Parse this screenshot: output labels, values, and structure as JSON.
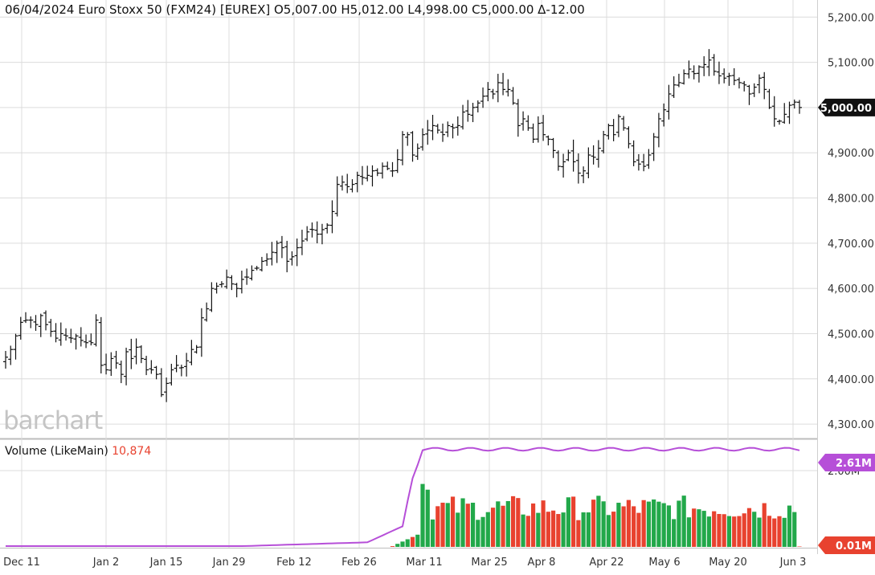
{
  "header": {
    "text": "06/04/2024 Euro Stoxx 50 (FXM24) [EUREX] O5,007.00 H5,012.00 L4,998.00 C5,000.00 Δ-12.00"
  },
  "logo": "barchart",
  "volume_header": {
    "label": "Volume  (LikeMain)",
    "value": "10,874"
  },
  "colors": {
    "up": "#22a84a",
    "down": "#e8422f",
    "avg_line": "#b64fd8",
    "grid": "#dcdcdc",
    "price_badge": "#111111"
  },
  "chart_data": [
    {
      "type": "ohlc",
      "title": "Euro Stoxx 50 (FXM24) [EUREX]",
      "ylim": [
        4270,
        5220
      ],
      "y_ticks": [
        "5,200.00",
        "5,100.00",
        "5,000.00",
        "4,900.00",
        "4,800.00",
        "4,700.00",
        "4,600.00",
        "4,500.00",
        "4,400.00",
        "4,300.00"
      ],
      "x_ticks": [
        "Dec 11",
        "Jan 2",
        "Jan 15",
        "Jan 29",
        "Feb 12",
        "Feb 26",
        "Mar 11",
        "Mar 25",
        "Apr 8",
        "Apr 22",
        "May 6",
        "May 20",
        "Jun 3"
      ],
      "last_price_label": "5,000.00",
      "closes": [
        4448,
        4465,
        4495,
        4525,
        4530,
        4530,
        4520,
        4540,
        4520,
        4505,
        4490,
        4500,
        4495,
        4490,
        4495,
        4485,
        4480,
        4480,
        4530,
        4430,
        4420,
        4445,
        4435,
        4410,
        4460,
        4445,
        4470,
        4445,
        4420,
        4420,
        4410,
        4365,
        4390,
        4420,
        4430,
        4425,
        4440,
        4465,
        4470,
        4535,
        4555,
        4600,
        4605,
        4610,
        4625,
        4610,
        4600,
        4620,
        4625,
        4640,
        4645,
        4660,
        4665,
        4680,
        4700,
        4690,
        4660,
        4670,
        4690,
        4705,
        4725,
        4730,
        4720,
        4730,
        4740,
        4770,
        4830,
        4835,
        4825,
        4830,
        4850,
        4845,
        4850,
        4860,
        4855,
        4870,
        4865,
        4860,
        4885,
        4940,
        4940,
        4895,
        4910,
        4940,
        4950,
        4960,
        4950,
        4940,
        4960,
        4955,
        4960,
        4990,
        4985,
        5000,
        5010,
        5025,
        5040,
        5030,
        5055,
        5040,
        5040,
        5010,
        4960,
        4975,
        4955,
        4930,
        4965,
        4940,
        4930,
        4905,
        4870,
        4880,
        4900,
        4880,
        4855,
        4860,
        4895,
        4890,
        4910,
        4940,
        4960,
        4940,
        4980,
        4955,
        4920,
        4880,
        4875,
        4870,
        4895,
        4935,
        4975,
        4995,
        5030,
        5050,
        5055,
        5075,
        5085,
        5075,
        5090,
        5095,
        5105,
        5080,
        5070,
        5065,
        5070,
        5060,
        5055,
        5050,
        5030,
        5045,
        5065,
        5040,
        5000,
        4975,
        4970,
        4985,
        5005,
        5012,
        5000
      ],
      "volume_ylim": [
        0,
        2800000
      ],
      "volume_ticks": [
        "2.00M"
      ],
      "avg_volume_label": "2.61M",
      "min_volume_label": "0.01M",
      "volume_last": "10,874"
    }
  ]
}
